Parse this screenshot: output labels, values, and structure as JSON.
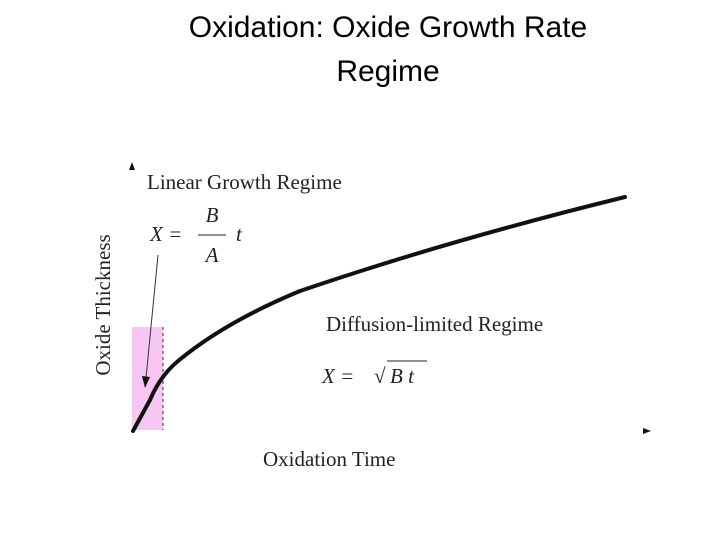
{
  "title": "Oxidation: Oxide Growth Rate Regime",
  "y_axis_label": "Oxide Thickness",
  "x_axis_label": "Oxidation Time",
  "linear_regime": {
    "label": "Linear Growth Regime",
    "lhs": "X =",
    "numerator": "B",
    "denominator": "A",
    "variable": "t"
  },
  "diffusion_regime": {
    "label": "Diffusion-limited Regime",
    "lhs": "X =",
    "root": "√",
    "radicand": "B t"
  }
}
